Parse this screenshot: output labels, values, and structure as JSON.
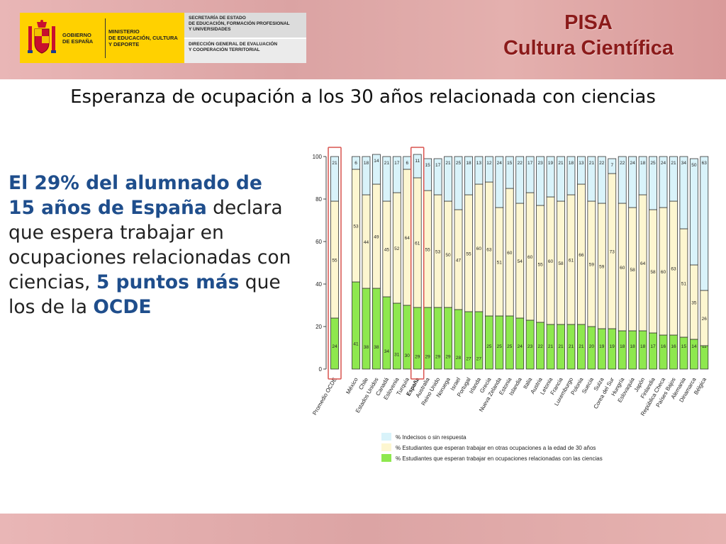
{
  "header": {
    "gobierno": "GOBIERNO\nDE ESPAÑA",
    "ministerio": "MINISTERIO\nDE EDUCACIÓN, CULTURA\nY DEPORTE",
    "secretaria": "SECRETARÍA DE ESTADO\nDE EDUCACIÓN, FORMACIÓN PROFESIONAL\nY UNIVERSIDADES",
    "direccion": "DIRECCIÓN GENERAL DE EVALUACIÓN\nY COOPERACIÓN TERRITORIAL",
    "title_line1": "PISA",
    "title_line2": "Cultura Científica"
  },
  "subtitle": "Esperanza de ocupación a los 30 años relacionada con ciencias",
  "text": {
    "p1": "El 29% del alumnado de 15 años de España",
    "p2": " declara que espera trabajar en ocupaciones relacionadas con ciencias, ",
    "p3": "5 puntos más",
    "p4": " que los de la ",
    "p5": "OCDE"
  },
  "colors": {
    "science": "#8ee84e",
    "other": "#fdf6d0",
    "undecided": "#d9f3fa",
    "highlight": "#d9534f",
    "title": "#8b1a1a",
    "accent_text": "#1f4e8c"
  },
  "chart_data": {
    "type": "bar",
    "stacked": true,
    "ylim": [
      0,
      100
    ],
    "yticks": [
      0,
      20,
      40,
      60,
      80,
      100
    ],
    "highlighted": [
      "Promedio OCDE",
      "España"
    ],
    "categories": [
      "Promedio OCDE",
      "México",
      "Chile",
      "Estados Unidos",
      "Canadá",
      "Eslovenia",
      "Turquía",
      "España",
      "Australia",
      "Reino Unido",
      "Noruega",
      "Israel",
      "Portugal",
      "Irlanda",
      "Grecia",
      "Nueva Zelanda",
      "Estonia",
      "Islandia",
      "Italia",
      "Austria",
      "Letonia",
      "Francia",
      "Luxemburgo",
      "Polonia",
      "Suecia",
      "Suiza",
      "Corea del Sur",
      "Hungría",
      "Eslovaquia",
      "Japón",
      "Finlandia",
      "República Checa",
      "Países Bajos",
      "Alemania",
      "Dinamarca",
      "Bélgica"
    ],
    "series": [
      {
        "name": "% Estudiantes que esperan trabajar en ocupaciones relacionadas con las ciencias",
        "values": [
          24,
          41,
          38,
          38,
          34,
          31,
          30,
          29,
          29,
          29,
          29,
          28,
          27,
          27,
          25,
          25,
          25,
          24,
          23,
          22,
          21,
          21,
          21,
          21,
          20,
          19,
          19,
          18,
          18,
          18,
          17,
          16,
          16,
          15,
          14,
          11
        ]
      },
      {
        "name": "% Estudiantes que esperan trabajar en otras ocupaciones a la edad de 30 años",
        "values": [
          55,
          53,
          44,
          49,
          45,
          52,
          64,
          61,
          55,
          53,
          50,
          47,
          55,
          60,
          63,
          51,
          60,
          54,
          60,
          55,
          60,
          58,
          61,
          66,
          59,
          59,
          73,
          60,
          58,
          64,
          58,
          60,
          63,
          51,
          35,
          26
        ]
      },
      {
        "name": "% Indecisos o sin respuesta",
        "values": [
          21,
          6,
          18,
          14,
          21,
          17,
          6,
          11,
          15,
          17,
          21,
          25,
          18,
          13,
          12,
          24,
          15,
          22,
          17,
          23,
          19,
          21,
          18,
          13,
          21,
          22,
          7,
          22,
          24,
          18,
          25,
          24,
          21,
          34,
          50,
          63
        ]
      }
    ]
  }
}
